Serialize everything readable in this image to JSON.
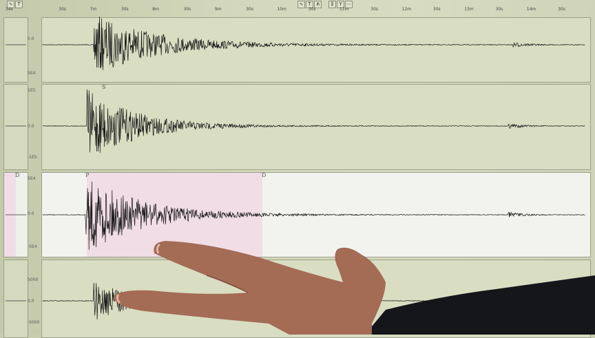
{
  "toolbar": {
    "left": [
      "∿",
      "T"
    ],
    "center": [
      "∿",
      "T",
      "⋔",
      "⫼",
      "Y",
      "⋯"
    ]
  },
  "time_axis": [
    "34s",
    "30s",
    "7m",
    "30s",
    "8m",
    "30s",
    "9m",
    "30s",
    "10m",
    "30s",
    "11m",
    "30s",
    "12m",
    "30s",
    "13m",
    "30s",
    "14m",
    "30s"
  ],
  "channels": [
    {
      "top": "",
      "mid": "0.0",
      "bottom": "5E4"
    },
    {
      "top": "1E5",
      "mid": "0.0",
      "bottom": "-1E5",
      "phase": "S"
    },
    {
      "top": "5E4",
      "mid": "0.0",
      "bottom": "-5E4",
      "phase": "P",
      "marker_left": "D",
      "marker_right": "D"
    },
    {
      "top": "5000",
      "mid": "0.0",
      "bottom": "-5000"
    }
  ],
  "colors": {
    "screen": "#d9ddc2",
    "highlight": "#f2f3ee",
    "pick": "#f0dde6",
    "trace": "#111111",
    "skin": "#a8705a",
    "sleeve": "#15161a"
  }
}
